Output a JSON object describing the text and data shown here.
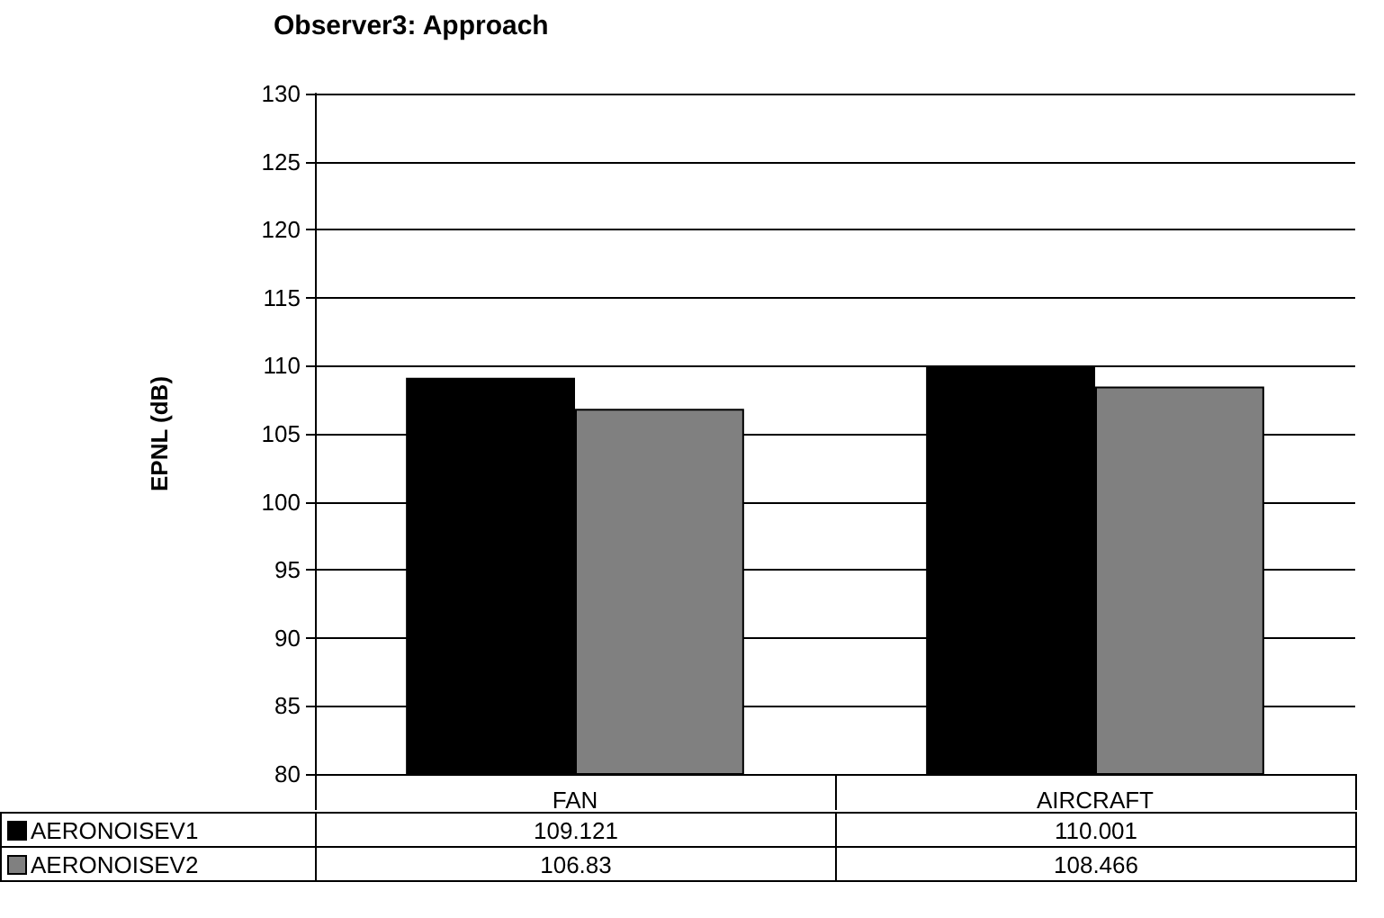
{
  "chart_data": {
    "type": "bar",
    "title": "Observer3: Approach",
    "ylabel": "EPNL (dB)",
    "categories": [
      "FAN",
      "AIRCRAFT"
    ],
    "series": [
      {
        "name": "AERONOISEV1",
        "color": "#000000",
        "values": [
          109.121,
          110.001
        ]
      },
      {
        "name": "AERONOISEV2",
        "color": "#808080",
        "values": [
          106.83,
          108.466
        ]
      }
    ],
    "ylim": [
      80,
      130
    ],
    "yticks": [
      80,
      85,
      90,
      95,
      100,
      105,
      110,
      115,
      120,
      125,
      130
    ],
    "grid": "y",
    "legend": "bottom left",
    "data_labels": true
  }
}
